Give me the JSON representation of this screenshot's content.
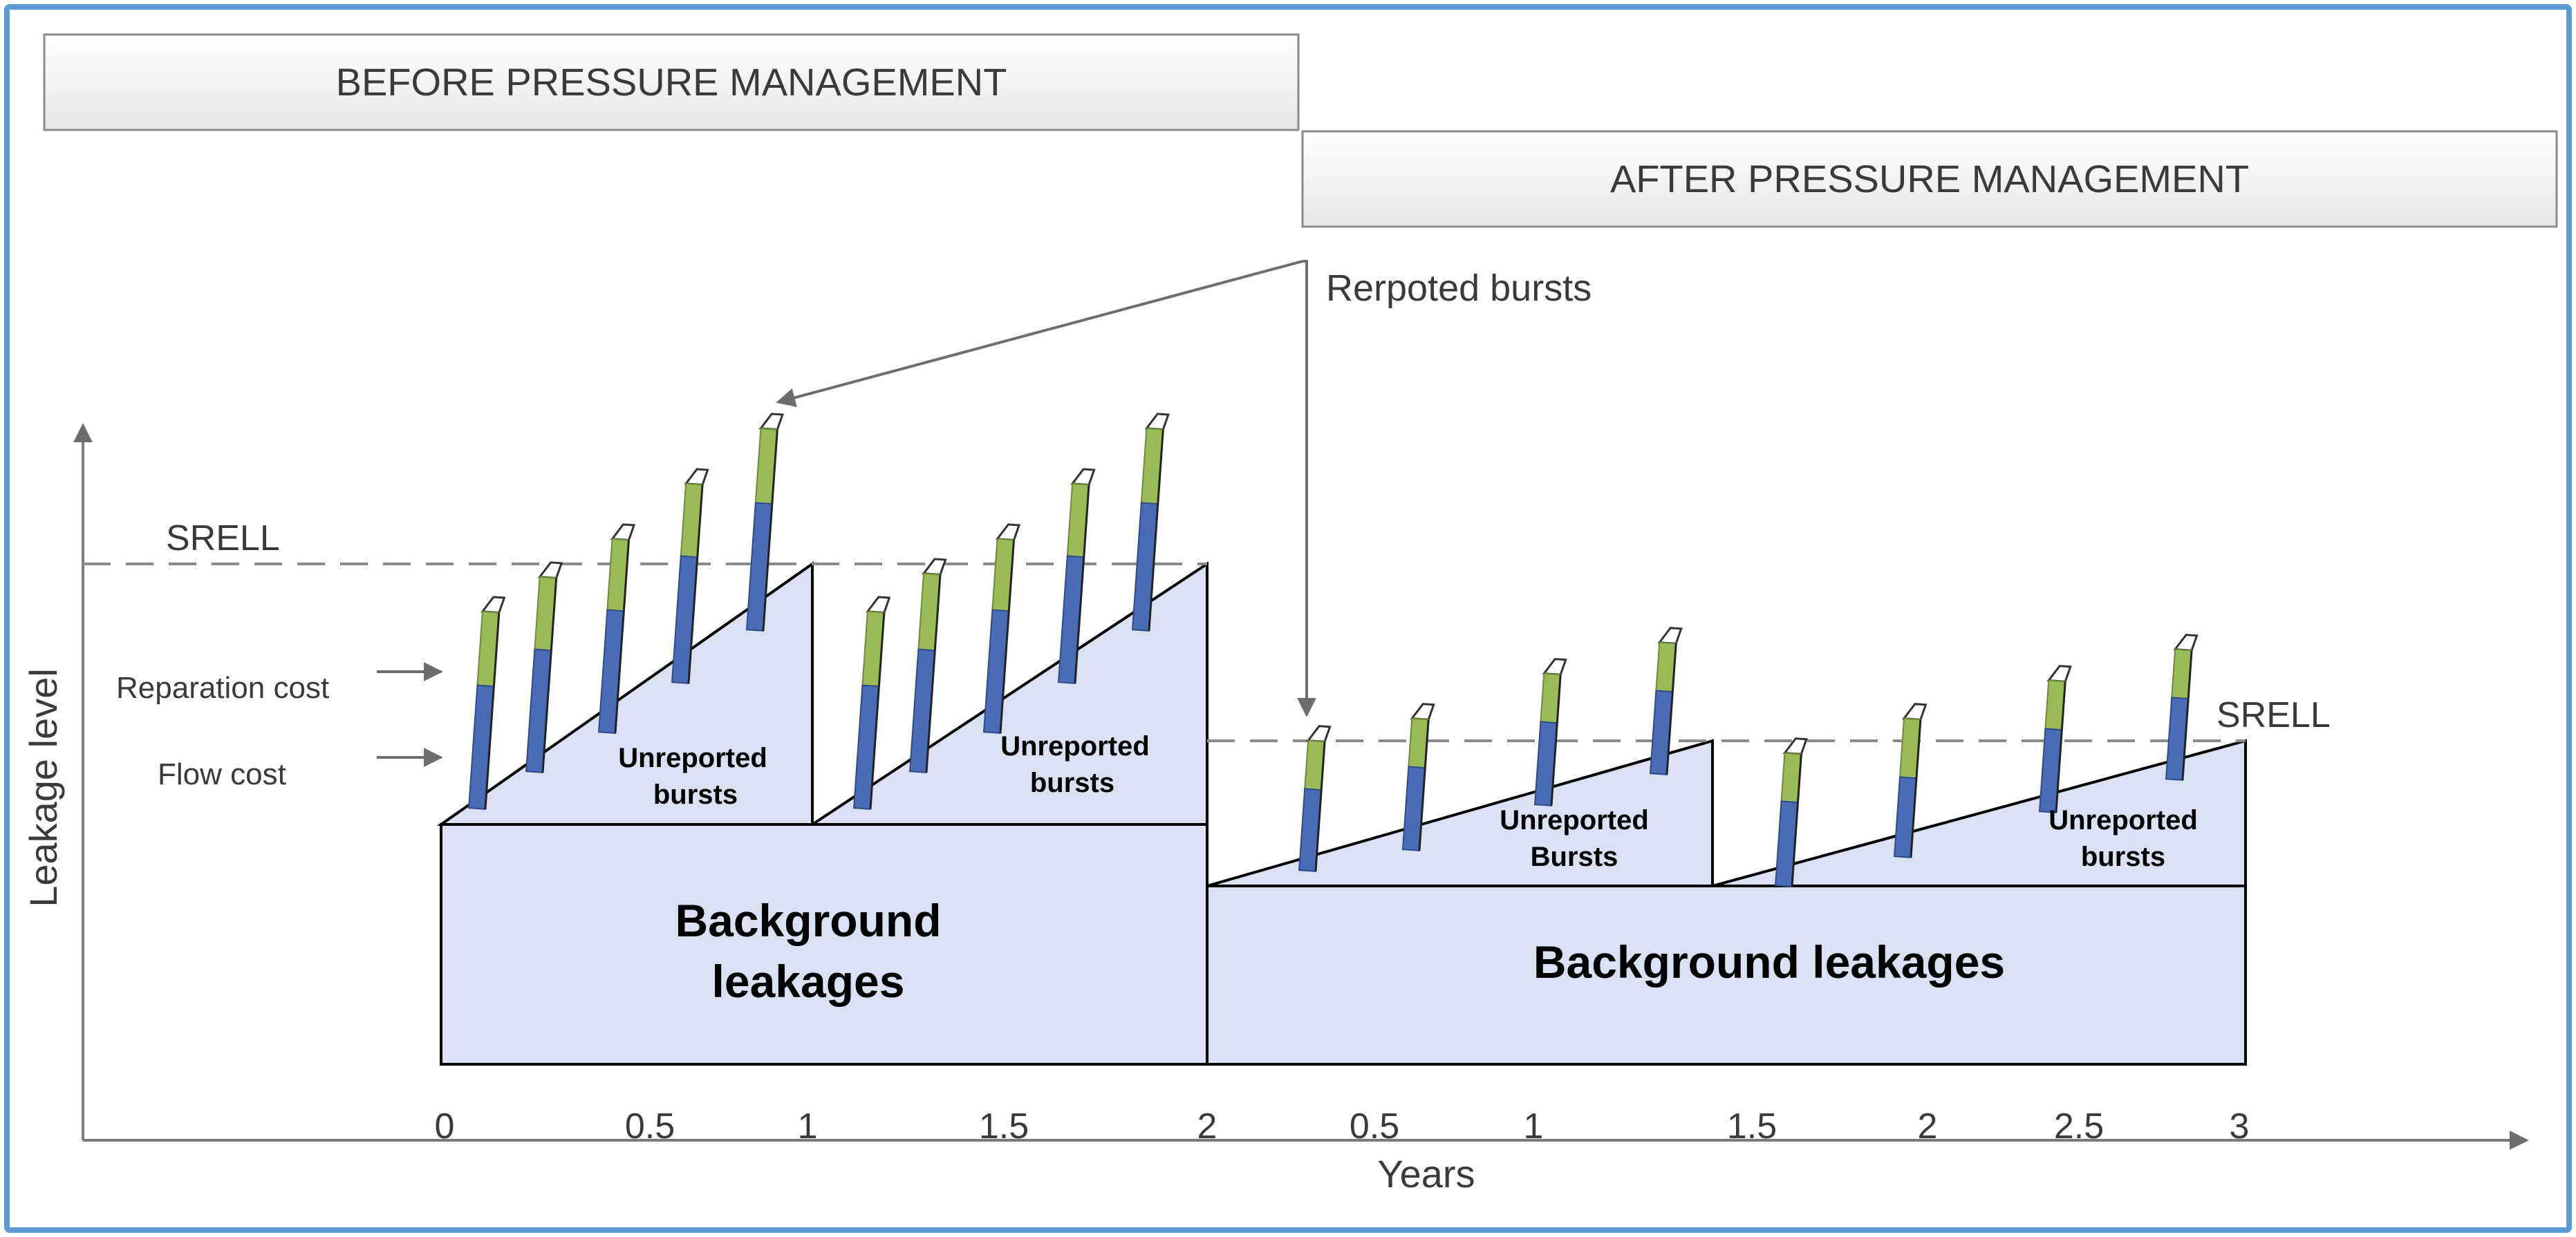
{
  "headers": {
    "before": "BEFORE PRESSURE MANAGEMENT",
    "after": "AFTER PRESSURE MANAGEMENT"
  },
  "annotations": {
    "reported_bursts": "Rerpoted bursts",
    "srell_before": "SRELL",
    "srell_after": "SRELL",
    "reparation_cost": "Reparation cost",
    "flow_cost": "Flow cost"
  },
  "axes": {
    "y_label": "Leakage level",
    "x_label": "Years",
    "ticks_before": [
      "0",
      "0.5",
      "1",
      "1.5",
      "2"
    ],
    "ticks_after": [
      "0.5",
      "1",
      "1.5",
      "2",
      "2.5",
      "3"
    ]
  },
  "regions": {
    "before_triangle_1": [
      "Unreported",
      "bursts"
    ],
    "before_triangle_2": [
      "Unreported",
      "bursts"
    ],
    "after_triangle_1": [
      "Unreported",
      "Bursts"
    ],
    "after_triangle_2": [
      "Unreported",
      "bursts"
    ],
    "before_background": [
      "Background",
      "leakages"
    ],
    "after_background": "Background leakages"
  },
  "colors": {
    "frame": "#5b9bd5",
    "fill": "#d9e1f2",
    "flow": "#4a6bb5",
    "reparation": "#9bbb59",
    "header_fill": "#f2f2f2",
    "arrow": "#6d6d6d"
  }
}
